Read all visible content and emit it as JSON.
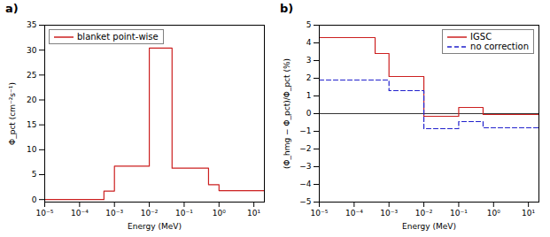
{
  "chart_data": [
    {
      "type": "step",
      "title": "a)",
      "xlabel": "Energy (MeV)",
      "ylabel": "Φ_pct (cm⁻²s⁻¹)",
      "log": "x",
      "xlim": [
        1e-05,
        20
      ],
      "xticks": [
        {
          "value": 1e-05,
          "label": "10⁻⁵"
        },
        {
          "value": 0.0001,
          "label": "10⁻⁴"
        },
        {
          "value": 0.001,
          "label": "10⁻³"
        },
        {
          "value": 0.01,
          "label": "10⁻²"
        },
        {
          "value": 0.1,
          "label": "10⁻¹"
        },
        {
          "value": 1,
          "label": "10⁰"
        },
        {
          "value": 10,
          "label": "10¹"
        }
      ],
      "ylim": [
        -0.5,
        35
      ],
      "yticks": [
        0,
        5,
        10,
        15,
        20,
        25,
        30,
        35
      ],
      "bins": [
        1e-05,
        0.0005,
        0.001,
        0.01,
        0.045,
        0.5,
        1.0,
        20.0
      ],
      "series": [
        {
          "name": "blanket point-wise",
          "color": "#cc2020",
          "line_style": "solid",
          "values": [
            0.0,
            1.7,
            6.7,
            30.4,
            6.3,
            3.0,
            1.8
          ]
        }
      ],
      "legend": "upper left"
    },
    {
      "type": "step",
      "title": "b)",
      "xlabel": "Energy (MeV)",
      "ylabel": "(Φ_hmg − Φ_pct)/Φ_pct (%)",
      "log": "x",
      "xlim": [
        1e-05,
        20
      ],
      "xticks": [
        {
          "value": 1e-05,
          "label": "10⁻⁵"
        },
        {
          "value": 0.0001,
          "label": "10⁻⁴"
        },
        {
          "value": 0.001,
          "label": "10⁻³"
        },
        {
          "value": 0.01,
          "label": "10⁻²"
        },
        {
          "value": 0.1,
          "label": "10⁻¹"
        },
        {
          "value": 1,
          "label": "10⁰"
        },
        {
          "value": 10,
          "label": "10¹"
        }
      ],
      "ylim": [
        -5,
        5
      ],
      "yticks": [
        -5,
        -4,
        -3,
        -2,
        -1,
        0,
        1,
        2,
        3,
        4,
        5
      ],
      "bins": [
        1e-05,
        0.0004,
        0.001,
        0.01,
        0.1,
        0.5,
        20.0
      ],
      "series": [
        {
          "name": "IGSC",
          "color": "#cc2020",
          "line_style": "solid",
          "values": [
            4.3,
            3.4,
            2.1,
            -0.15,
            0.35,
            -0.05
          ]
        },
        {
          "name": "no correction",
          "color": "#2020cc",
          "line_style": "dashed",
          "values": [
            1.9,
            1.9,
            1.3,
            -0.85,
            -0.45,
            -0.8
          ]
        }
      ],
      "hline": 0,
      "legend": "upper right"
    }
  ]
}
